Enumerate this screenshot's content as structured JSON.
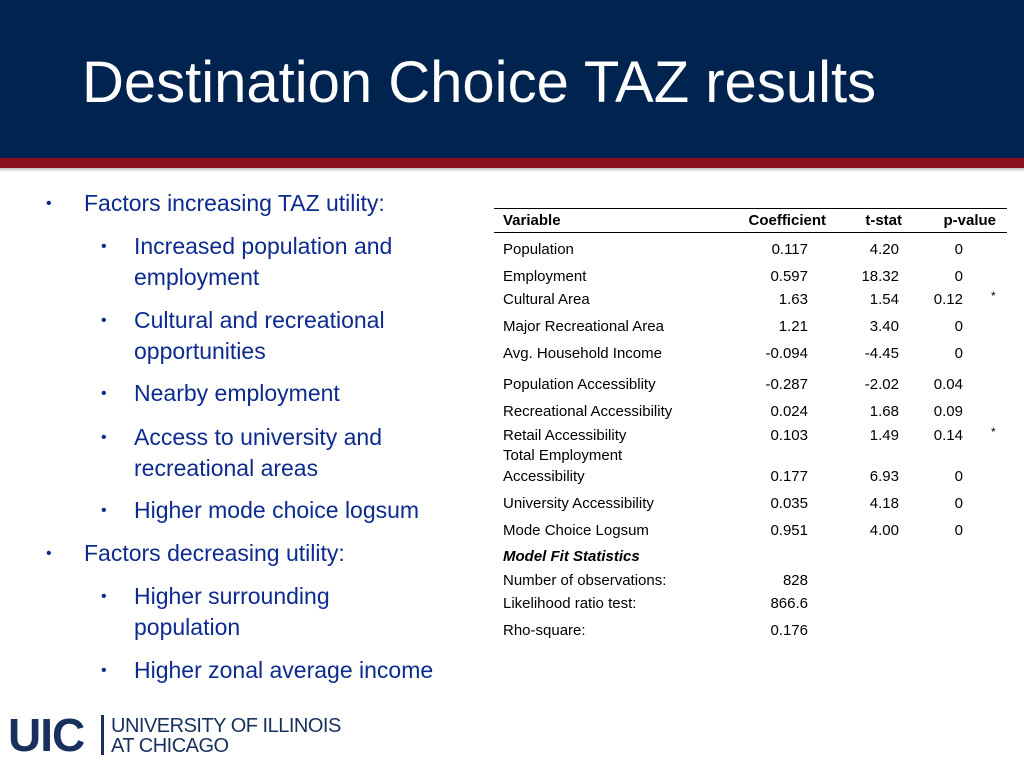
{
  "title": "Destination Choice TAZ results",
  "bullets": [
    {
      "level": 1,
      "lines": [
        "Factors increasing TAZ utility:"
      ]
    },
    {
      "level": 2,
      "lines": [
        "Increased population and",
        "employment"
      ]
    },
    {
      "level": 2,
      "lines": [
        "Cultural and recreational",
        "opportunities"
      ]
    },
    {
      "level": 2,
      "lines": [
        "Nearby employment"
      ]
    },
    {
      "level": 2,
      "lines": [
        "Access to university and",
        "recreational areas"
      ]
    },
    {
      "level": 2,
      "lines": [
        "Higher mode choice logsum"
      ]
    },
    {
      "level": 1,
      "lines": [
        "Factors decreasing utility:"
      ]
    },
    {
      "level": 2,
      "lines": [
        "Higher surrounding",
        "population"
      ]
    },
    {
      "level": 2,
      "lines": [
        "Higher zonal average income"
      ]
    }
  ],
  "table": {
    "headers": [
      "Variable",
      "Coefficient",
      "t-stat",
      "p-value"
    ],
    "rows": [
      {
        "variable": "Population",
        "coefficient": "0.117",
        "tstat": "4.20",
        "pvalue": "0",
        "note": ""
      },
      {
        "variable": "Employment",
        "coefficient": "0.597",
        "tstat": "18.32",
        "pvalue": "0",
        "note": ""
      },
      {
        "variable": "Cultural Area",
        "coefficient": "1.63",
        "tstat": "1.54",
        "pvalue": "0.12",
        "note": "*"
      },
      {
        "variable": "Major Recreational Area",
        "coefficient": "1.21",
        "tstat": "3.40",
        "pvalue": "0",
        "note": ""
      },
      {
        "variable": "Avg. Household Income",
        "coefficient": "-0.094",
        "tstat": "-4.45",
        "pvalue": "0",
        "note": ""
      },
      {
        "variable": "Population Accessiblity",
        "coefficient": "-0.287",
        "tstat": "-2.02",
        "pvalue": "0.04",
        "note": ""
      },
      {
        "variable": "Recreational Accessibility",
        "coefficient": "0.024",
        "tstat": "1.68",
        "pvalue": "0.09",
        "note": ""
      },
      {
        "variable": "Retail Accessibility",
        "coefficient": "0.103",
        "tstat": "1.49",
        "pvalue": "0.14",
        "note": "*"
      },
      {
        "variable": "Total Employment",
        "variable2": "Accessibility",
        "coefficient": "0.177",
        "tstat": "6.93",
        "pvalue": "0",
        "note": ""
      },
      {
        "variable": "University Accessibility",
        "coefficient": "0.035",
        "tstat": "4.18",
        "pvalue": "0",
        "note": ""
      },
      {
        "variable": "Mode Choice Logsum",
        "coefficient": "0.951",
        "tstat": "4.00",
        "pvalue": "0",
        "note": ""
      }
    ],
    "fit_title": "Model Fit Statistics",
    "fit_rows": [
      {
        "label": "Number of observations:",
        "value": "828"
      },
      {
        "label": "Likelihood ratio test:",
        "value": "866.6"
      },
      {
        "label": "Rho-square:",
        "value": "0.176"
      }
    ]
  },
  "logo": {
    "mark": "UIC",
    "line1": "UNIVERSITY OF ILLINOIS",
    "line2": "AT CHICAGO"
  },
  "colors": {
    "header_bg": "#00244f",
    "accent_red": "#8b0f1d",
    "bullet_text": "#0d2b8f"
  }
}
